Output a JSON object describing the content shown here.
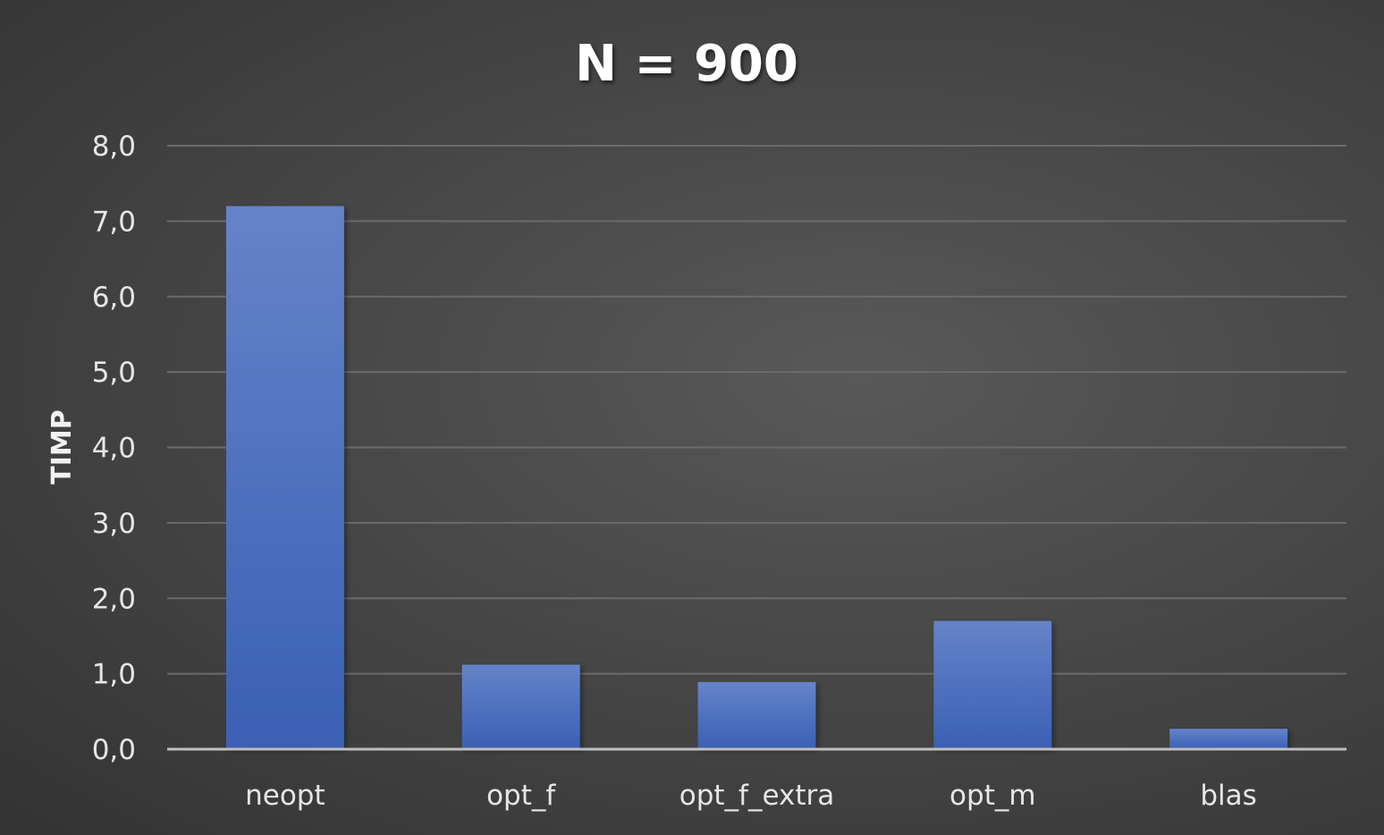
{
  "chart_data": {
    "type": "bar",
    "title": "N = 900",
    "xlabel": "",
    "ylabel": "TIMP",
    "categories": [
      "neopt",
      "opt_f",
      "opt_f_extra",
      "opt_m",
      "blas"
    ],
    "series": [
      {
        "name": "TIMP",
        "values": [
          7.2,
          1.12,
          0.89,
          1.7,
          0.27
        ]
      }
    ],
    "ylim": [
      0,
      8
    ],
    "yticks": [
      "0,0",
      "1,0",
      "2,0",
      "3,0",
      "4,0",
      "5,0",
      "6,0",
      "7,0",
      "8,0"
    ],
    "grid": true,
    "legend": "none",
    "colors": {
      "bar_top": "#6583c9",
      "bar_bottom": "#3a60b4",
      "grid": "#6b6b6b",
      "axis": "#bfbfbf"
    }
  }
}
